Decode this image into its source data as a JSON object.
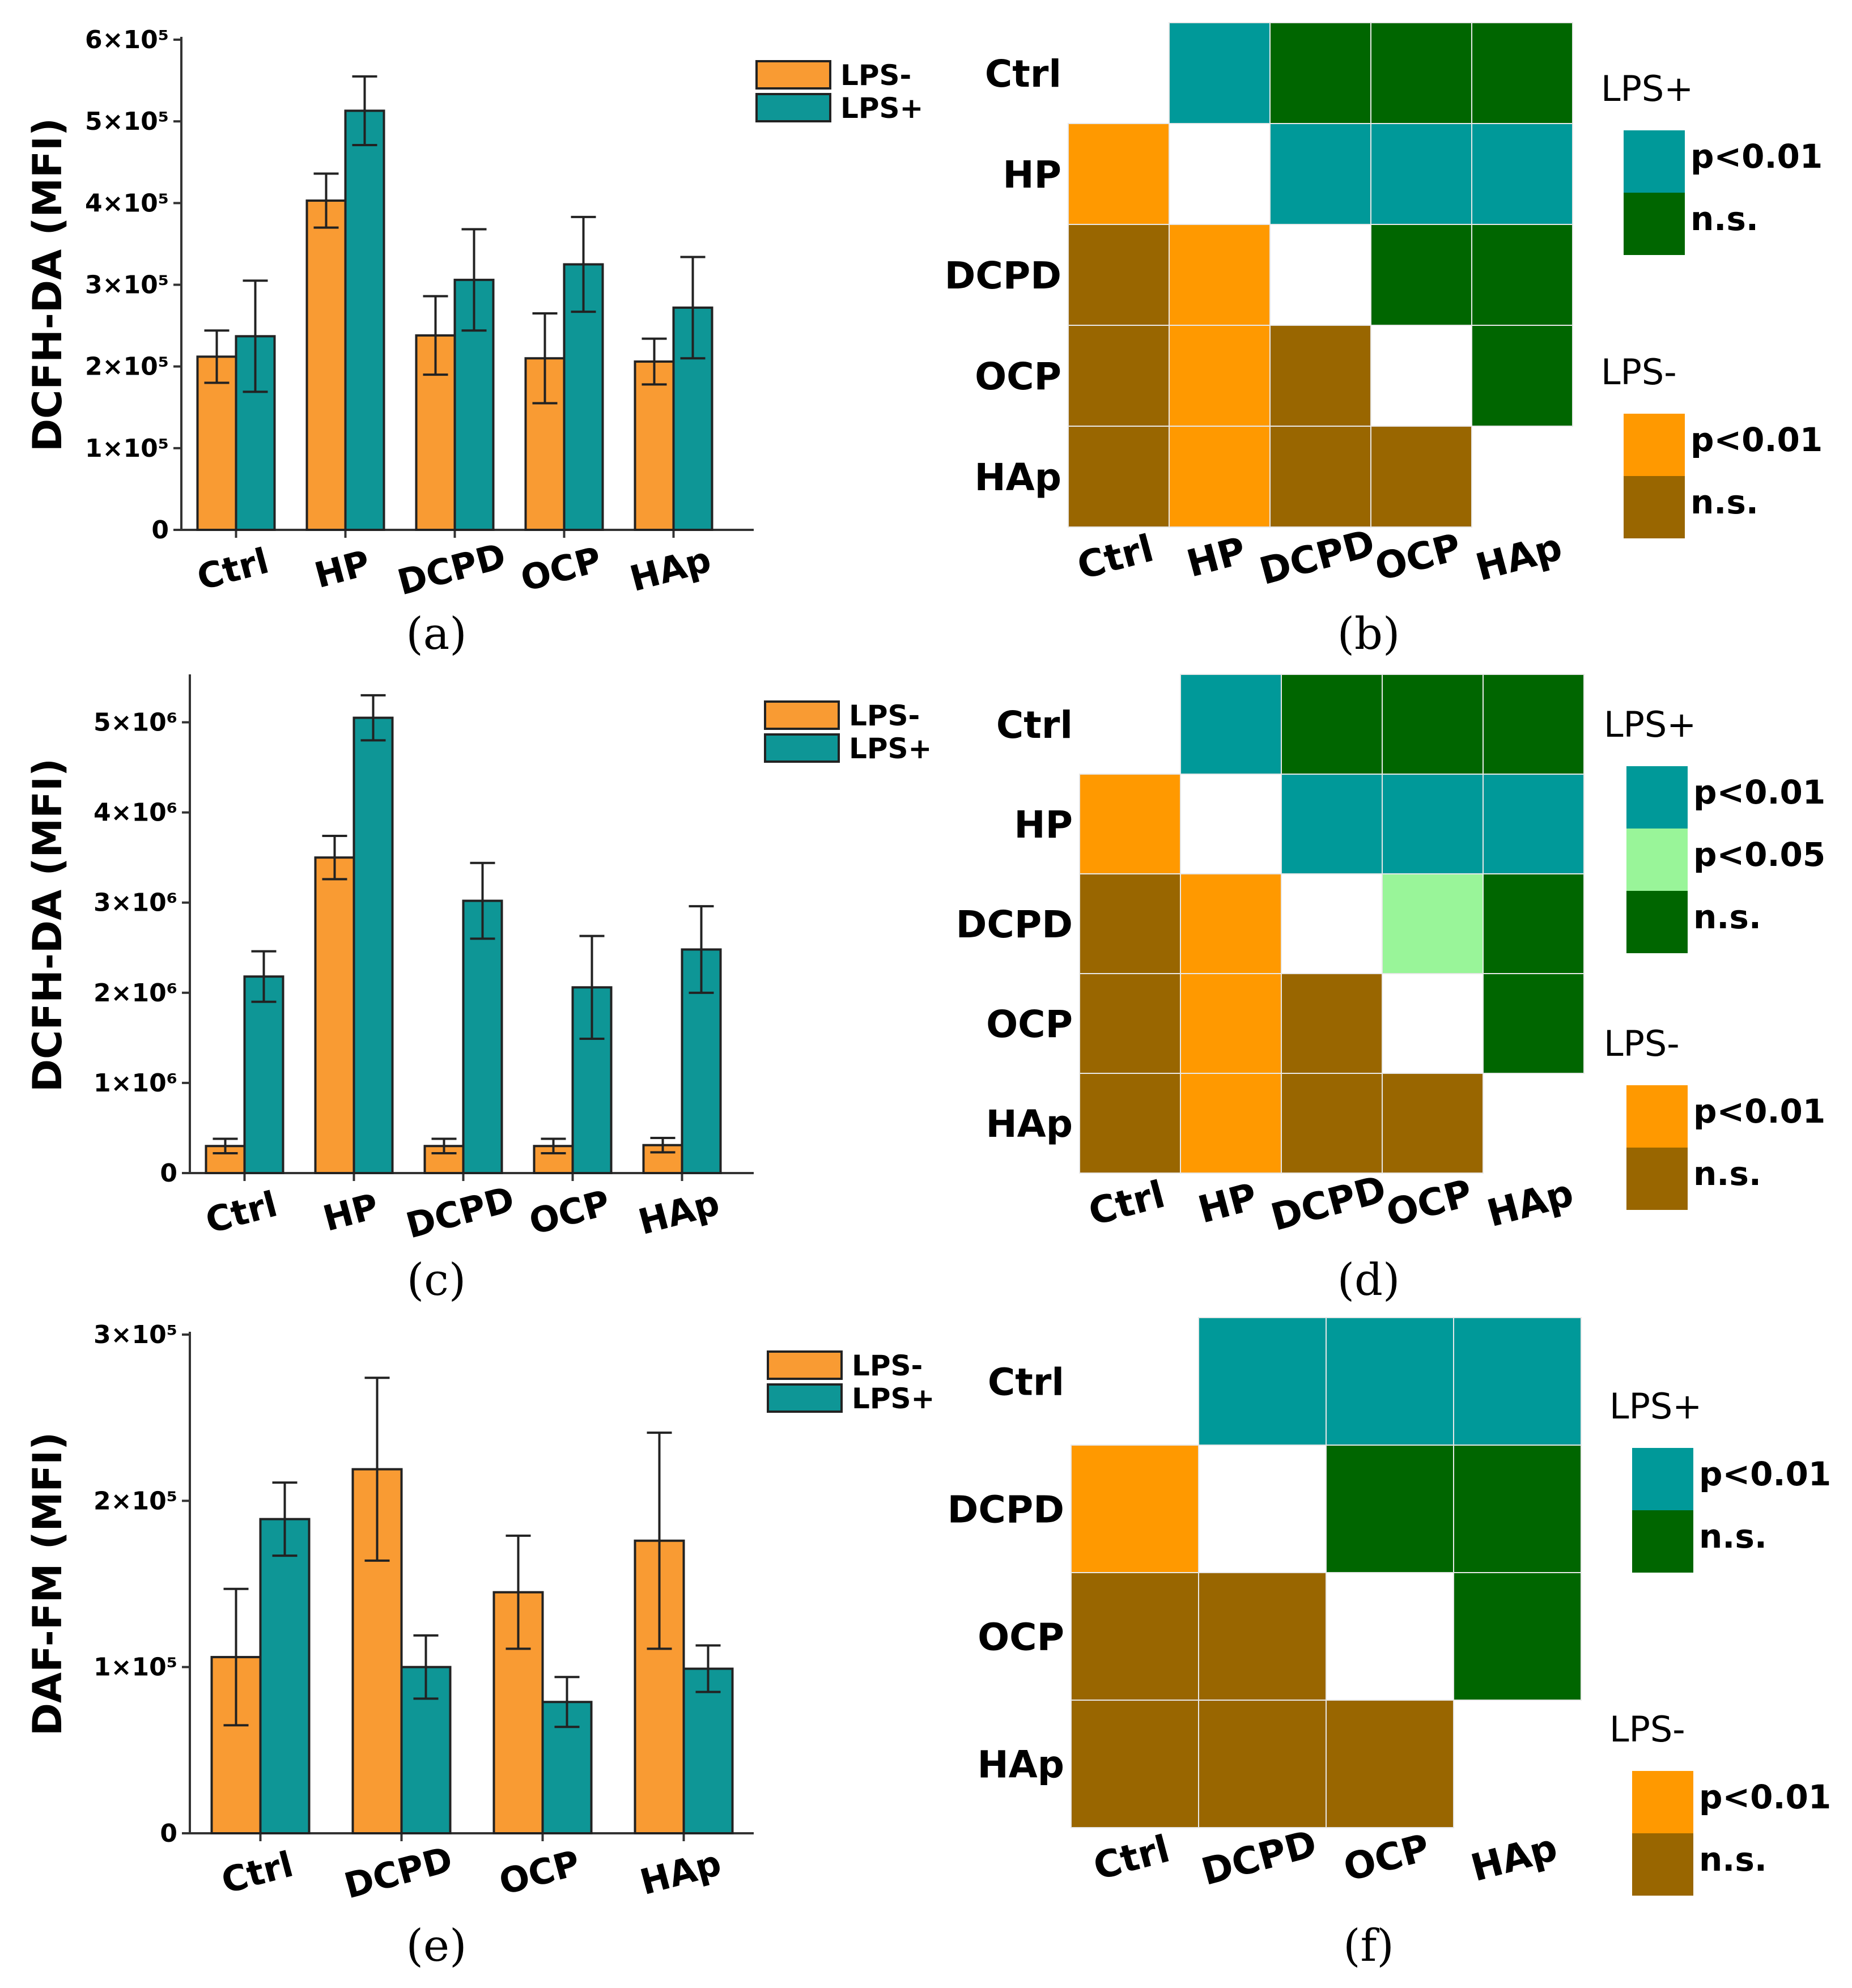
{
  "colors": {
    "lps_minus": "#f99b33",
    "lps_plus": "#0e9696",
    "sig_plus": "#009999",
    "sig05_plus": "#99f599",
    "ns_plus": "#006600",
    "sig_minus": "#ff9900",
    "ns_minus": "#996600"
  },
  "chart_data": [
    {
      "panel": "(a)",
      "type": "bar",
      "ylabel": "DCFH-DA (MFI)",
      "categories": [
        "Ctrl",
        "HP",
        "DCPD",
        "OCP",
        "HAp"
      ],
      "ylim": [
        0,
        600000
      ],
      "yticks": [
        {
          "value": 0,
          "label": "0"
        },
        {
          "value": 100000,
          "label": "1×10⁵"
        },
        {
          "value": 200000,
          "label": "2×10⁵"
        },
        {
          "value": 300000,
          "label": "3×10⁵"
        },
        {
          "value": 400000,
          "label": "4×10⁵"
        },
        {
          "value": 500000,
          "label": "5×10⁵"
        },
        {
          "value": 600000,
          "label": "6×10⁵"
        }
      ],
      "series": [
        {
          "name": "LPS-",
          "values": [
            212000,
            403000,
            238000,
            210000,
            206000
          ],
          "errors": [
            32000,
            33000,
            48000,
            55000,
            28000
          ]
        },
        {
          "name": "LPS+",
          "values": [
            237000,
            513000,
            306000,
            325000,
            272000
          ],
          "errors": [
            68000,
            42000,
            62000,
            58000,
            62000
          ]
        }
      ]
    },
    {
      "panel": "(c)",
      "type": "bar",
      "ylabel": "DCFH-DA (MFI)",
      "categories": [
        "Ctrl",
        "HP",
        "DCPD",
        "OCP",
        "HAp"
      ],
      "ylim": [
        0,
        5500000
      ],
      "yticks": [
        {
          "value": 0,
          "label": "0"
        },
        {
          "value": 1000000,
          "label": "1×10⁶"
        },
        {
          "value": 2000000,
          "label": "2×10⁶"
        },
        {
          "value": 3000000,
          "label": "3×10⁶"
        },
        {
          "value": 4000000,
          "label": "4×10⁶"
        },
        {
          "value": 5000000,
          "label": "5×10⁶"
        }
      ],
      "series": [
        {
          "name": "LPS-",
          "values": [
            300000,
            3500000,
            300000,
            300000,
            310000
          ],
          "errors": [
            80000,
            240000,
            80000,
            80000,
            80000
          ]
        },
        {
          "name": "LPS+",
          "values": [
            2180000,
            5050000,
            3020000,
            2060000,
            2480000
          ],
          "errors": [
            280000,
            250000,
            420000,
            570000,
            480000
          ]
        }
      ]
    },
    {
      "panel": "(e)",
      "type": "bar",
      "ylabel": "DAF-FM (MFI)",
      "categories": [
        "Ctrl",
        "DCPD",
        "OCP",
        "HAp"
      ],
      "ylim": [
        0,
        300000
      ],
      "yticks": [
        {
          "value": 0,
          "label": "0"
        },
        {
          "value": 100000,
          "label": "1×10⁵"
        },
        {
          "value": 200000,
          "label": "2×10⁵"
        },
        {
          "value": 300000,
          "label": "3×10⁵"
        }
      ],
      "series": [
        {
          "name": "LPS-",
          "values": [
            106000,
            219000,
            145000,
            176000
          ],
          "errors": [
            41000,
            55000,
            34000,
            65000
          ]
        },
        {
          "name": "LPS+",
          "values": [
            189000,
            100000,
            79000,
            99000
          ],
          "errors": [
            22000,
            19000,
            15000,
            14000
          ]
        }
      ]
    },
    {
      "panel": "(b)",
      "type": "heatmap",
      "labels": [
        "Ctrl",
        "HP",
        "DCPD",
        "OCP",
        "HAp"
      ],
      "upper": "LPS+",
      "lower": "LPS-",
      "matrix": [
        [
          "",
          "sig_plus",
          "ns_plus",
          "ns_plus",
          "ns_plus"
        ],
        [
          "sig_minus",
          "",
          "sig_plus",
          "sig_plus",
          "sig_plus"
        ],
        [
          "ns_minus",
          "sig_minus",
          "",
          "ns_plus",
          "ns_plus"
        ],
        [
          "ns_minus",
          "sig_minus",
          "ns_minus",
          "",
          "ns_plus"
        ],
        [
          "ns_minus",
          "sig_minus",
          "ns_minus",
          "ns_minus",
          ""
        ]
      ],
      "keys": [
        {
          "title": "LPS+",
          "items": [
            {
              "color": "sig_plus",
              "label": "p<0.01"
            },
            {
              "color": "ns_plus",
              "label": "n.s."
            }
          ]
        },
        {
          "title": "LPS-",
          "items": [
            {
              "color": "sig_minus",
              "label": "p<0.01"
            },
            {
              "color": "ns_minus",
              "label": "n.s."
            }
          ]
        }
      ]
    },
    {
      "panel": "(d)",
      "type": "heatmap",
      "labels": [
        "Ctrl",
        "HP",
        "DCPD",
        "OCP",
        "HAp"
      ],
      "upper": "LPS+",
      "lower": "LPS-",
      "matrix": [
        [
          "",
          "sig_plus",
          "ns_plus",
          "ns_plus",
          "ns_plus"
        ],
        [
          "sig_minus",
          "",
          "sig_plus",
          "sig_plus",
          "sig_plus"
        ],
        [
          "ns_minus",
          "sig_minus",
          "",
          "sig05_plus",
          "ns_plus"
        ],
        [
          "ns_minus",
          "sig_minus",
          "ns_minus",
          "",
          "ns_plus"
        ],
        [
          "ns_minus",
          "sig_minus",
          "ns_minus",
          "ns_minus",
          ""
        ]
      ],
      "keys": [
        {
          "title": "LPS+",
          "items": [
            {
              "color": "sig_plus",
              "label": "p<0.01"
            },
            {
              "color": "sig05_plus",
              "label": "p<0.05"
            },
            {
              "color": "ns_plus",
              "label": "n.s."
            }
          ]
        },
        {
          "title": "LPS-",
          "items": [
            {
              "color": "sig_minus",
              "label": "p<0.01"
            },
            {
              "color": "ns_minus",
              "label": "n.s."
            }
          ]
        }
      ]
    },
    {
      "panel": "(f)",
      "type": "heatmap",
      "labels": [
        "Ctrl",
        "DCPD",
        "OCP",
        "HAp"
      ],
      "upper": "LPS+",
      "lower": "LPS-",
      "matrix": [
        [
          "",
          "sig_plus",
          "sig_plus",
          "sig_plus"
        ],
        [
          "sig_minus",
          "",
          "ns_plus",
          "ns_plus"
        ],
        [
          "ns_minus",
          "ns_minus",
          "",
          "ns_plus"
        ],
        [
          "ns_minus",
          "ns_minus",
          "ns_minus",
          ""
        ]
      ],
      "keys": [
        {
          "title": "LPS+",
          "items": [
            {
              "color": "sig_plus",
              "label": "p<0.01"
            },
            {
              "color": "ns_plus",
              "label": "n.s."
            }
          ]
        },
        {
          "title": "LPS-",
          "items": [
            {
              "color": "sig_minus",
              "label": "p<0.01"
            },
            {
              "color": "ns_minus",
              "label": "n.s."
            }
          ]
        }
      ]
    }
  ]
}
